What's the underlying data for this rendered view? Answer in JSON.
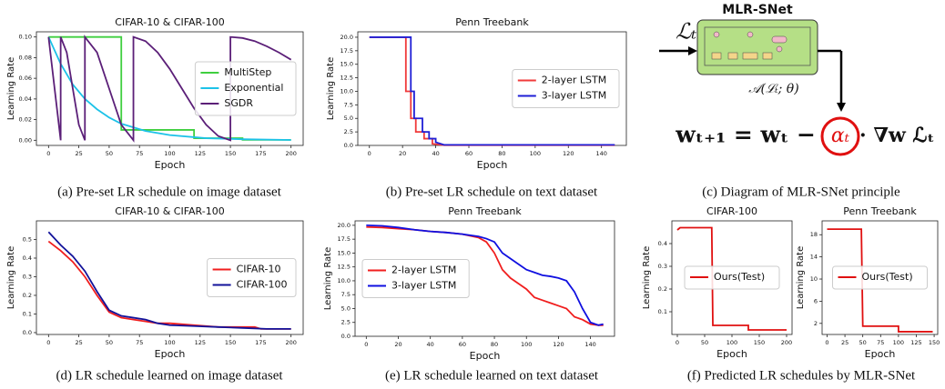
{
  "chart_data": [
    {
      "type": "line",
      "title": "CIFAR-10 & CIFAR-100",
      "xlabel": "Epoch",
      "ylabel": "Learning Rate",
      "legend": "right",
      "xlim": [
        -10,
        210
      ],
      "ylim": [
        -0.005,
        0.105
      ],
      "xticks": [
        0,
        25,
        50,
        75,
        100,
        125,
        150,
        175,
        200
      ],
      "yticks": [
        {
          "value": 0,
          "label": "0.00"
        },
        {
          "value": 0.02,
          "label": "0.02"
        },
        {
          "value": 0.04,
          "label": "0.04"
        },
        {
          "value": 0.06,
          "label": "0.06"
        },
        {
          "value": 0.08,
          "label": "0.08"
        },
        {
          "value": 0.1,
          "label": "0.10"
        }
      ],
      "series": [
        {
          "name": "MultiStep",
          "color": "#3fcf3f",
          "x": [
            0,
            60,
            60,
            120,
            120,
            160,
            160,
            200
          ],
          "values": [
            0.1,
            0.1,
            0.01,
            0.01,
            0.002,
            0.002,
            0.0004,
            0.0004
          ]
        },
        {
          "name": "Exponential",
          "color": "#1cc2e8",
          "x": [
            0,
            10,
            20,
            30,
            40,
            50,
            60,
            80,
            100,
            130,
            160,
            200
          ],
          "values": [
            0.1,
            0.074,
            0.054,
            0.04,
            0.03,
            0.022,
            0.016,
            0.009,
            0.005,
            0.002,
            0.001,
            0.0003
          ]
        },
        {
          "name": "SGDR",
          "color": "#5b1f78",
          "x": [
            0,
            5,
            10,
            10,
            15,
            20,
            25,
            30,
            30,
            40,
            50,
            60,
            70,
            70,
            80,
            90,
            100,
            110,
            120,
            130,
            140,
            150,
            150,
            160,
            170,
            180,
            190,
            200
          ],
          "values": [
            0.1,
            0.05,
            0,
            0.1,
            0.085,
            0.05,
            0.015,
            0,
            0.1,
            0.085,
            0.05,
            0.015,
            0,
            0.1,
            0.096,
            0.085,
            0.069,
            0.05,
            0.031,
            0.015,
            0.004,
            0,
            0.1,
            0.099,
            0.096,
            0.091,
            0.085,
            0.078
          ]
        }
      ]
    },
    {
      "type": "line",
      "title": "Penn Treebank",
      "xlabel": "Epoch",
      "ylabel": "Learning Rate",
      "legend": "right",
      "xlim": [
        -7,
        155
      ],
      "ylim": [
        0,
        21
      ],
      "xticks": [
        0,
        20,
        40,
        60,
        80,
        100,
        120,
        140
      ],
      "yticks": [
        {
          "value": 0,
          "label": "0.0"
        },
        {
          "value": 2.5,
          "label": "2.5"
        },
        {
          "value": 5,
          "label": "5.0"
        },
        {
          "value": 7.5,
          "label": "7.5"
        },
        {
          "value": 10,
          "label": "10.0"
        },
        {
          "value": 12.5,
          "label": "12.5"
        },
        {
          "value": 15,
          "label": "15.0"
        },
        {
          "value": 17.5,
          "label": "17.5"
        },
        {
          "value": 20,
          "label": "20.0"
        }
      ],
      "series": [
        {
          "name": "2-layer LSTM",
          "color": "#f03a3a",
          "x": [
            0,
            20,
            22,
            22,
            25,
            25,
            28,
            28,
            33,
            33,
            38,
            38,
            45,
            148
          ],
          "values": [
            20,
            20,
            20,
            10,
            10,
            5,
            5,
            2.5,
            2.5,
            1.25,
            1.25,
            0.3,
            0.05,
            0.05
          ]
        },
        {
          "name": "3-layer LSTM",
          "color": "#1f1fd6",
          "x": [
            0,
            23,
            25,
            25,
            27,
            27,
            32,
            32,
            36,
            36,
            40,
            40,
            45,
            148
          ],
          "values": [
            20,
            20,
            20,
            10,
            10,
            5,
            5,
            2.5,
            2.5,
            1.25,
            1.25,
            0.6,
            0.1,
            0.1
          ]
        }
      ]
    },
    {
      "type": "line",
      "title": "CIFAR-10 & CIFAR-100",
      "xlabel": "Epoch",
      "ylabel": "Learning Rate",
      "legend": "right",
      "xlim": [
        -10,
        210
      ],
      "ylim": [
        -0.01,
        0.6
      ],
      "xticks": [
        0,
        25,
        50,
        75,
        100,
        125,
        150,
        175,
        200
      ],
      "yticks": [
        {
          "value": 0,
          "label": "0.0"
        },
        0.1,
        0.2,
        0.3,
        0.4,
        0.5
      ],
      "series": [
        {
          "name": "CIFAR-10",
          "color": "#f01e1e",
          "x": [
            0,
            10,
            20,
            30,
            40,
            50,
            60,
            70,
            80,
            90,
            100,
            120,
            140,
            160,
            170,
            175,
            200
          ],
          "values": [
            0.49,
            0.44,
            0.38,
            0.3,
            0.2,
            0.11,
            0.08,
            0.07,
            0.06,
            0.05,
            0.05,
            0.04,
            0.03,
            0.03,
            0.03,
            0.02,
            0.02
          ]
        },
        {
          "name": "CIFAR-100",
          "color": "#12129a",
          "x": [
            0,
            10,
            20,
            30,
            40,
            50,
            60,
            70,
            80,
            90,
            100,
            120,
            140,
            160,
            180,
            200
          ],
          "values": [
            0.54,
            0.47,
            0.41,
            0.33,
            0.22,
            0.12,
            0.09,
            0.08,
            0.07,
            0.05,
            0.04,
            0.035,
            0.03,
            0.025,
            0.02,
            0.02
          ]
        }
      ]
    },
    {
      "type": "line",
      "title": "Penn Treebank",
      "xlabel": "Epoch",
      "ylabel": "Learning Rate",
      "legend": "left",
      "xlim": [
        -7,
        155
      ],
      "ylim": [
        0,
        20.8
      ],
      "xticks": [
        0,
        20,
        40,
        60,
        80,
        100,
        120,
        140
      ],
      "yticks": [
        {
          "value": 0,
          "label": "0.0"
        },
        2.5,
        {
          "value": 5,
          "label": "5.0"
        },
        7.5,
        {
          "value": 10,
          "label": "10.0"
        },
        12.5,
        {
          "value": 15,
          "label": "15.0"
        },
        17.5,
        {
          "value": 20,
          "label": "20.0"
        }
      ],
      "series": [
        {
          "name": "2-layer LSTM",
          "color": "#f01e1e",
          "x": [
            0,
            10,
            20,
            30,
            40,
            50,
            60,
            70,
            75,
            80,
            85,
            90,
            95,
            100,
            105,
            110,
            115,
            120,
            125,
            130,
            135,
            140,
            145,
            148
          ],
          "values": [
            19.7,
            19.6,
            19.4,
            19.2,
            18.9,
            18.7,
            18.4,
            17.8,
            17,
            15,
            12,
            10.5,
            9.5,
            8.5,
            7,
            6.5,
            6,
            5.5,
            5,
            3.5,
            3,
            2.2,
            2,
            2
          ]
        },
        {
          "name": "3-layer LSTM",
          "color": "#1010e0",
          "x": [
            0,
            10,
            20,
            30,
            40,
            50,
            60,
            70,
            75,
            80,
            85,
            90,
            95,
            100,
            105,
            110,
            115,
            120,
            125,
            130,
            135,
            140,
            145,
            148
          ],
          "values": [
            20,
            19.9,
            19.6,
            19.2,
            18.9,
            18.7,
            18.4,
            18,
            17.6,
            17,
            15,
            14,
            13,
            12,
            11.5,
            11,
            10.8,
            10.5,
            10,
            8,
            5,
            2.5,
            2,
            2.2
          ]
        }
      ]
    },
    {
      "type": "line",
      "title": "CIFAR-100",
      "xlabel": "Epoch",
      "ylabel": "Learning Rate",
      "legend": "center",
      "xlim": [
        -10,
        210
      ],
      "ylim": [
        0,
        0.5
      ],
      "xticks": [
        0,
        50,
        100,
        150,
        200
      ],
      "yticks": [
        0.1,
        0.2,
        0.3,
        0.4
      ],
      "series": [
        {
          "name": "Ours(Test)",
          "color": "#e01010",
          "x": [
            0,
            5,
            63,
            65,
            130,
            130,
            200
          ],
          "values": [
            0.46,
            0.47,
            0.47,
            0.04,
            0.04,
            0.02,
            0.02
          ]
        }
      ]
    },
    {
      "type": "line",
      "title": "Penn Treebank",
      "xlabel": "Epoch",
      "ylabel": "Learning Rate",
      "legend": "center",
      "xlim": [
        -7,
        155
      ],
      "ylim": [
        0,
        20.5
      ],
      "xticks": [
        0,
        25,
        50,
        75,
        100,
        125,
        150
      ],
      "yticks": [
        2,
        6,
        10,
        14,
        18
      ],
      "series": [
        {
          "name": "Ours(Test)",
          "color": "#e01010",
          "x": [
            0,
            48,
            50,
            100,
            100,
            148
          ],
          "values": [
            19,
            19,
            1.5,
            1.5,
            0.5,
            0.5
          ]
        }
      ]
    }
  ],
  "diagram": {
    "title": "MLR-SNet",
    "input": "ℒₜ",
    "function": "𝒜(ℒₜ; θ)",
    "formula_left": "wₜ₊₁ = wₜ −",
    "formula_alpha": "αₜ",
    "formula_right": "· ∇w ℒₜ"
  },
  "captions": [
    "(a)  Pre-set LR schedule on image dataset",
    "(b)  Pre-set LR schedule on text dataset",
    "(c)  Diagram of MLR-SNet principle",
    "(d)  LR schedule learned on image dataset",
    "(e)  LR schedule learned on text dataset",
    "(f)  Predicted LR schedules by MLR-SNet"
  ]
}
